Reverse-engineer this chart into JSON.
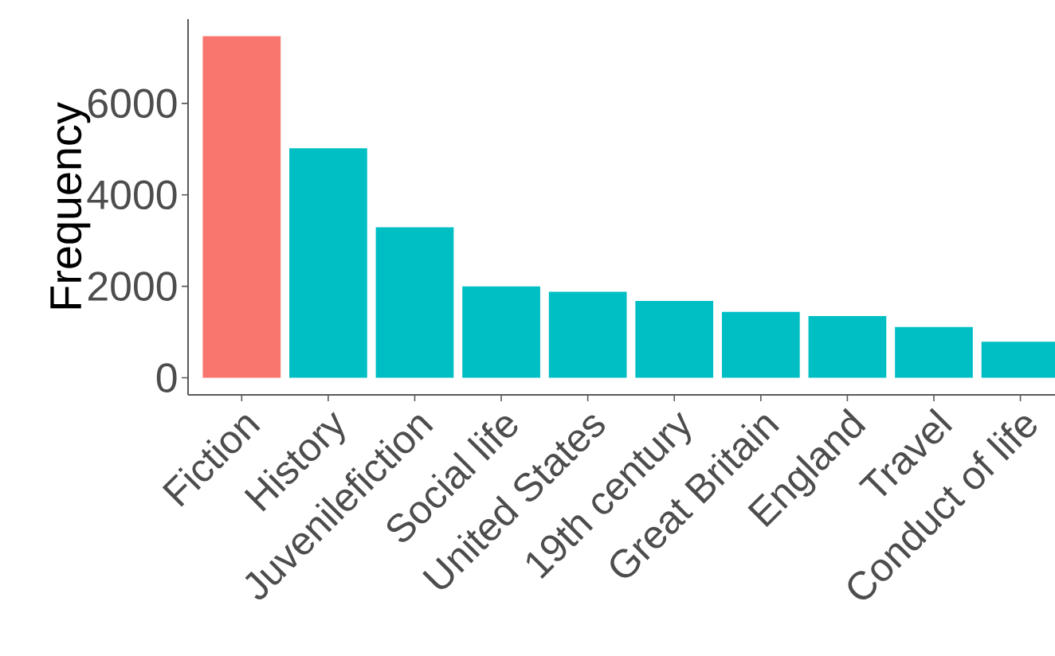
{
  "chart_data": {
    "type": "bar",
    "ylabel": "Frequency",
    "categories": [
      "Fiction",
      "History",
      "Juvenilefiction",
      "Social life",
      "United States",
      "19th century",
      "Great Britain",
      "England",
      "Travel",
      "Conduct of life"
    ],
    "values": [
      7470,
      5020,
      3290,
      2000,
      1880,
      1680,
      1440,
      1350,
      1110,
      790
    ],
    "colors": [
      "#f8766d",
      "#00bfc4",
      "#00bfc4",
      "#00bfc4",
      "#00bfc4",
      "#00bfc4",
      "#00bfc4",
      "#00bfc4",
      "#00bfc4",
      "#00bfc4"
    ],
    "ylim": [
      -373,
      7843
    ],
    "yticks": [
      0,
      2000,
      4000,
      6000
    ]
  }
}
